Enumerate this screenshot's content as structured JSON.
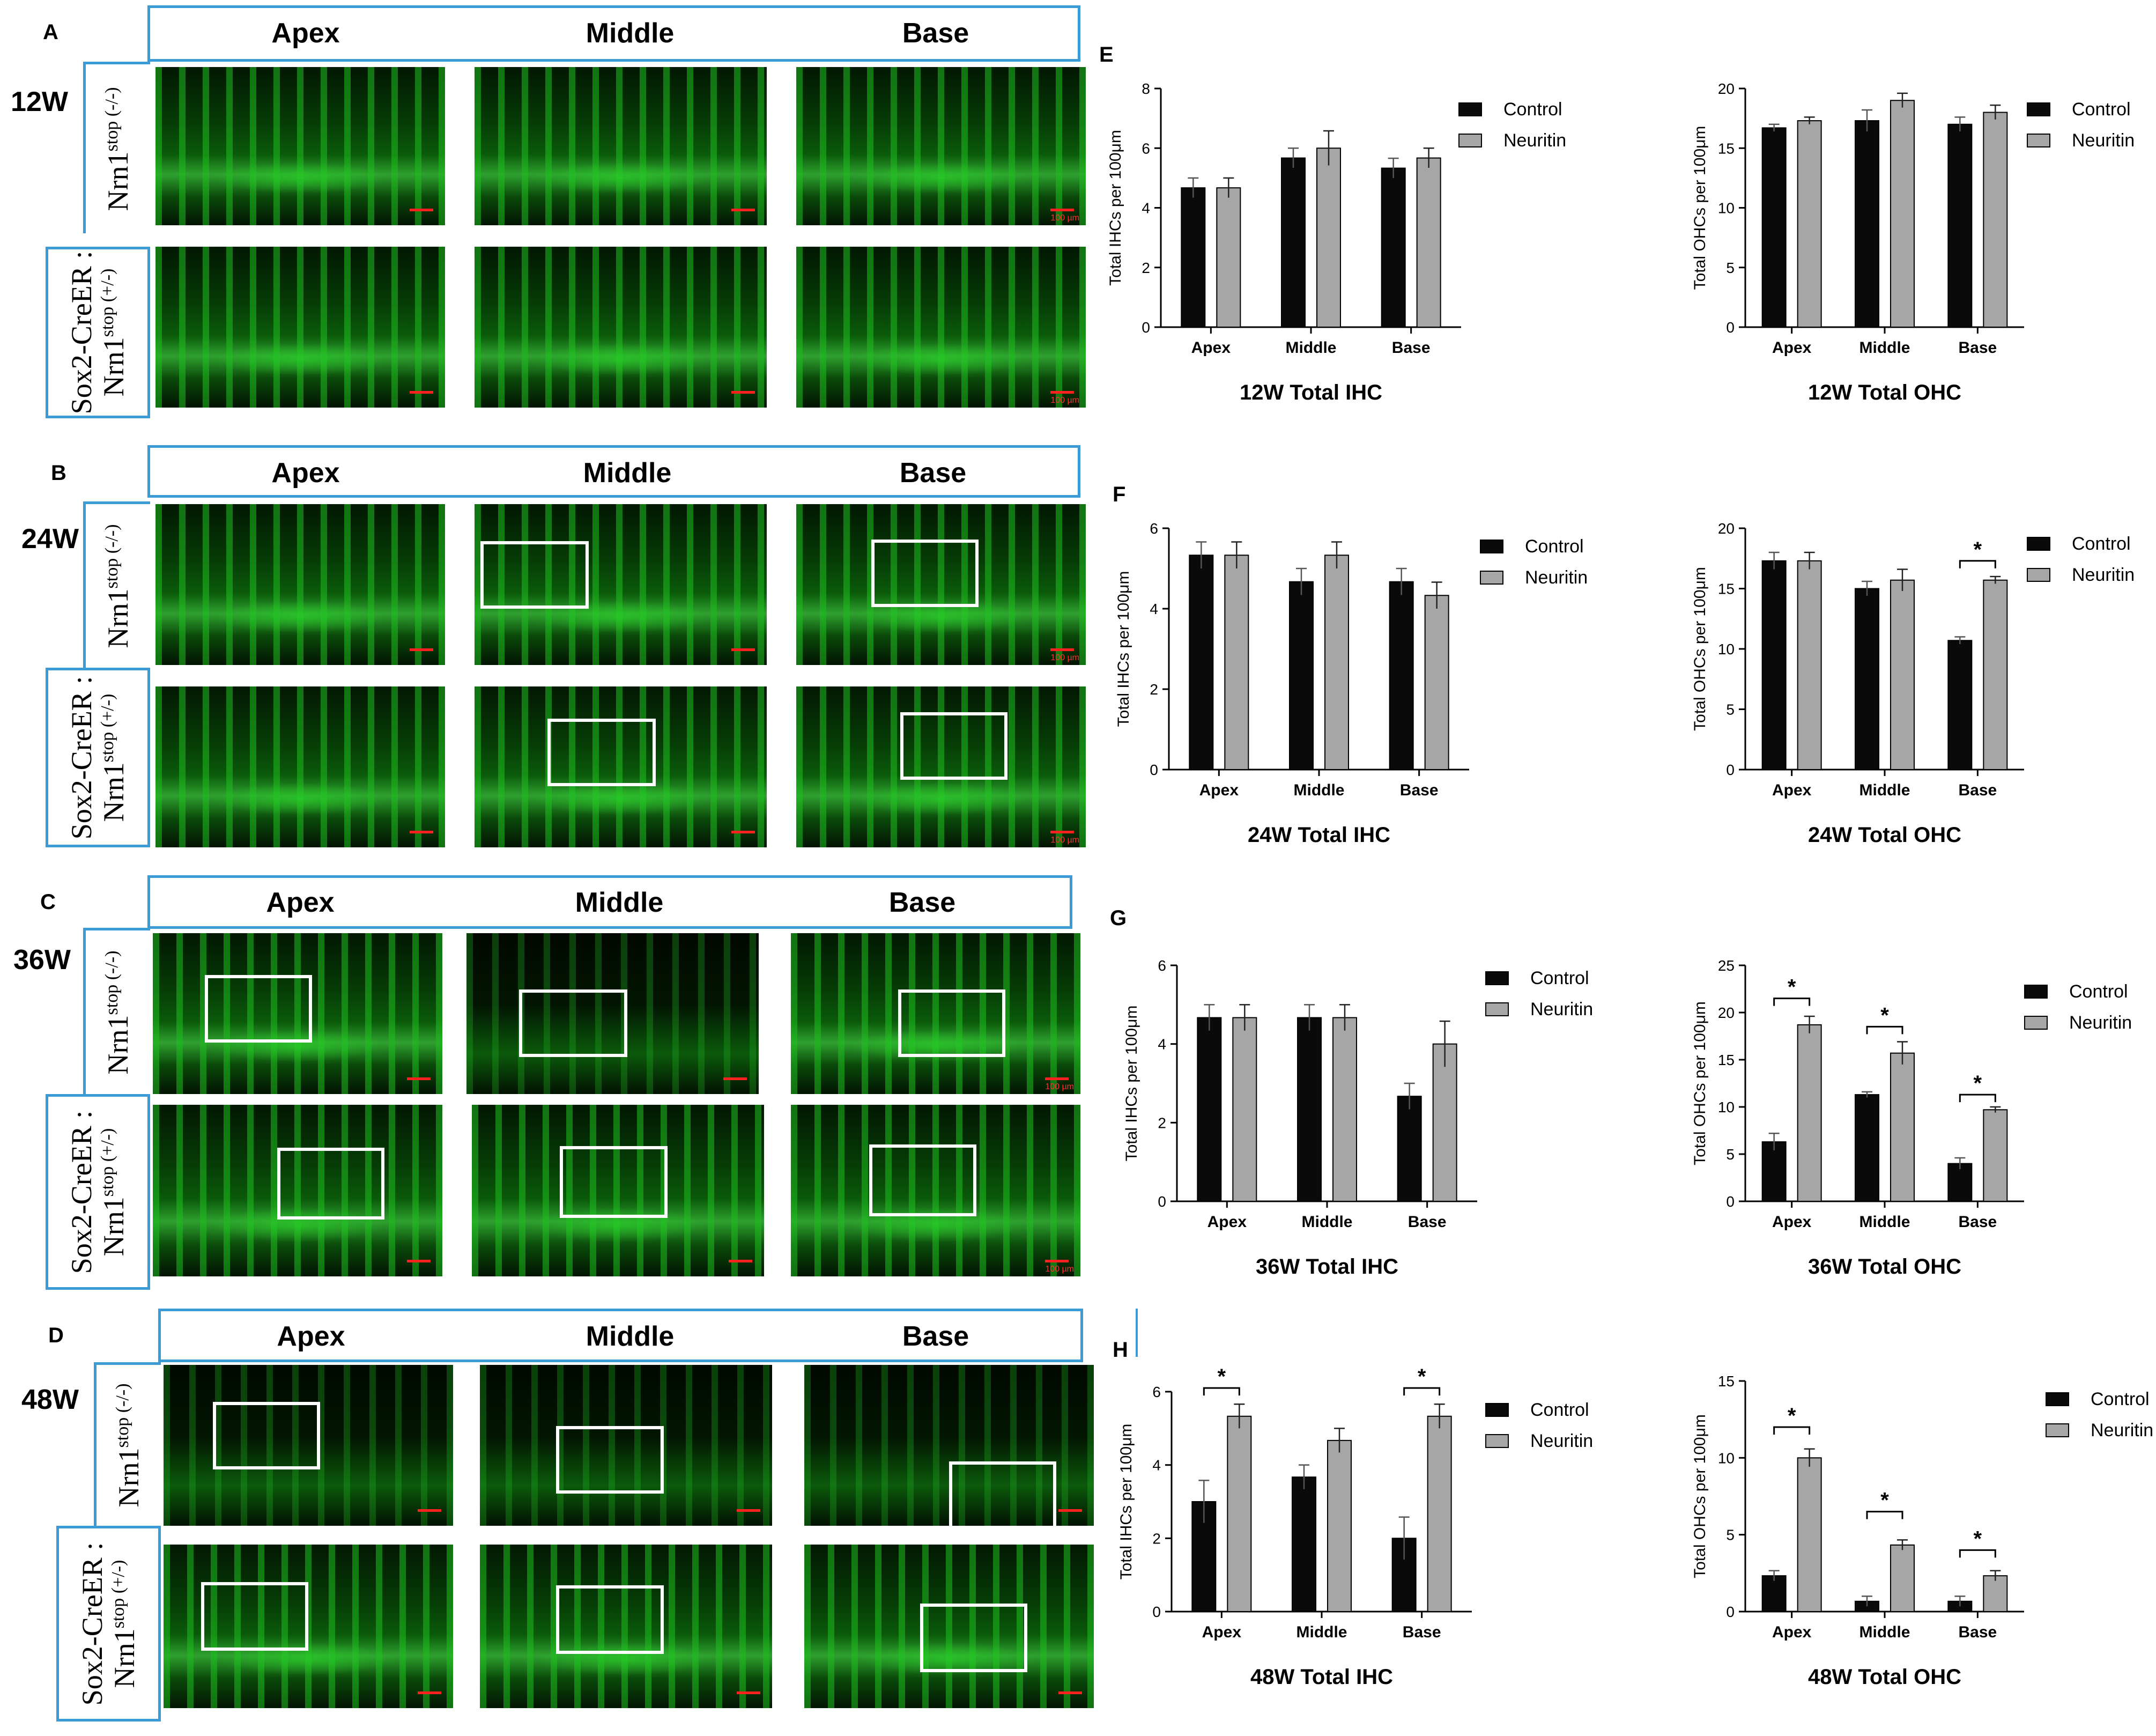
{
  "rows": [
    {
      "panel": "A",
      "week": "12W",
      "regions": [
        "Apex",
        "Middle",
        "Base"
      ],
      "genotype_top": {
        "line1": "Nrn1",
        "sup1": "stop",
        "sup2": "(-/-)"
      },
      "genotype_bottom": {
        "line0": "Sox2-CreER :",
        "line1": "Nrn1",
        "sup1": "stop",
        "sup2": "(+/-)"
      },
      "scale_label": "100 µm",
      "has_roi": false
    },
    {
      "panel": "B",
      "week": "24W",
      "regions": [
        "Apex",
        "Middle",
        "Base"
      ],
      "genotype_top": {
        "line1": "Nrn1",
        "sup1": "stop",
        "sup2": "(-/-)"
      },
      "genotype_bottom": {
        "line0": "Sox2-CreER :",
        "line1": "Nrn1",
        "sup1": "stop",
        "sup2": "(+/-)"
      },
      "scale_label": "100 µm",
      "has_roi": true
    },
    {
      "panel": "C",
      "week": "36W",
      "regions": [
        "Apex",
        "Middle",
        "Base"
      ],
      "genotype_top": {
        "line1": "Nrn1",
        "sup1": "stop",
        "sup2": "(-/-)"
      },
      "genotype_bottom": {
        "line0": "Sox2-CreER :",
        "line1": "Nrn1",
        "sup1": "stop",
        "sup2": "(+/-)"
      },
      "scale_label": "100 µm",
      "has_roi": true
    },
    {
      "panel": "D",
      "week": "48W",
      "regions": [
        "Apex",
        "Middle",
        "Base"
      ],
      "genotype_top": {
        "line1": "Nrn1",
        "sup1": "stop",
        "sup2": "(-/-)"
      },
      "genotype_bottom": {
        "line0": "Sox2-CreER :",
        "line1": "Nrn1",
        "sup1": "stop",
        "sup2": "(+/-)"
      },
      "scale_label": "",
      "has_roi": true
    }
  ],
  "colors": {
    "control": "#0a0a0a",
    "neuritin": "#a6a6a6",
    "frame": "#3b9bd6",
    "fluor": "#2ecc2e"
  },
  "legend": {
    "control": "Control",
    "neuritin": "Neuritin"
  },
  "chart_data": [
    {
      "panel": "E",
      "type": "bar",
      "title": "12W Total IHC",
      "ylabel": "Total IHCs per 100μm",
      "categories": [
        "Apex",
        "Middle",
        "Base"
      ],
      "ylim": [
        0,
        8
      ],
      "yticks": [
        0,
        2,
        4,
        6,
        8
      ],
      "series": [
        {
          "name": "Control",
          "values": [
            4.67,
            5.67,
            5.33
          ],
          "errors": [
            0.33,
            0.33,
            0.33
          ]
        },
        {
          "name": "Neuritin",
          "values": [
            4.67,
            6.0,
            5.67
          ],
          "errors": [
            0.33,
            0.58,
            0.33
          ]
        }
      ],
      "significance": [],
      "legend": "right"
    },
    {
      "panel": "E",
      "type": "bar",
      "title": "12W Total OHC",
      "ylabel": "Total OHCs per 100μm",
      "categories": [
        "Apex",
        "Middle",
        "Base"
      ],
      "ylim": [
        0,
        20
      ],
      "yticks": [
        0,
        5,
        10,
        15,
        20
      ],
      "series": [
        {
          "name": "Control",
          "values": [
            16.7,
            17.3,
            17.0
          ],
          "errors": [
            0.3,
            0.9,
            0.6
          ]
        },
        {
          "name": "Neuritin",
          "values": [
            17.3,
            19.0,
            18.0
          ],
          "errors": [
            0.3,
            0.6,
            0.6
          ]
        }
      ],
      "significance": [],
      "legend": "right"
    },
    {
      "panel": "F",
      "type": "bar",
      "title": "24W Total IHC",
      "ylabel": "Total IHCs per 100μm",
      "categories": [
        "Apex",
        "Middle",
        "Base"
      ],
      "ylim": [
        0,
        6
      ],
      "yticks": [
        0,
        2,
        4,
        6
      ],
      "series": [
        {
          "name": "Control",
          "values": [
            5.33,
            4.67,
            4.67
          ],
          "errors": [
            0.33,
            0.33,
            0.33
          ]
        },
        {
          "name": "Neuritin",
          "values": [
            5.33,
            5.33,
            4.33
          ],
          "errors": [
            0.33,
            0.33,
            0.33
          ]
        }
      ],
      "significance": [],
      "legend": "right"
    },
    {
      "panel": "F",
      "type": "bar",
      "title": "24W Total OHC",
      "ylabel": "Total OHCs per 100μm",
      "categories": [
        "Apex",
        "Middle",
        "Base"
      ],
      "ylim": [
        0,
        20
      ],
      "yticks": [
        0,
        5,
        10,
        15,
        20
      ],
      "series": [
        {
          "name": "Control",
          "values": [
            17.3,
            15.0,
            10.7
          ],
          "errors": [
            0.7,
            0.6,
            0.3
          ]
        },
        {
          "name": "Neuritin",
          "values": [
            17.3,
            15.7,
            15.7
          ],
          "errors": [
            0.7,
            0.9,
            0.3
          ]
        }
      ],
      "significance": [
        {
          "category": 2,
          "label": "*",
          "level": 17.3
        }
      ],
      "legend": "right"
    },
    {
      "panel": "G",
      "type": "bar",
      "title": "36W Total IHC",
      "ylabel": "Total IHCs per 100μm",
      "categories": [
        "Apex",
        "Middle",
        "Base"
      ],
      "ylim": [
        0,
        6
      ],
      "yticks": [
        0,
        2,
        4,
        6
      ],
      "series": [
        {
          "name": "Control",
          "values": [
            4.67,
            4.67,
            2.67
          ],
          "errors": [
            0.33,
            0.33,
            0.33
          ]
        },
        {
          "name": "Neuritin",
          "values": [
            4.67,
            4.67,
            4.0
          ],
          "errors": [
            0.33,
            0.33,
            0.58
          ]
        }
      ],
      "significance": [],
      "legend": "right"
    },
    {
      "panel": "G",
      "type": "bar",
      "title": "36W Total OHC",
      "ylabel": "Total OHCs per 100μm",
      "categories": [
        "Apex",
        "Middle",
        "Base"
      ],
      "ylim": [
        0,
        25
      ],
      "yticks": [
        0,
        5,
        10,
        15,
        20,
        25
      ],
      "series": [
        {
          "name": "Control",
          "values": [
            6.3,
            11.3,
            4.0
          ],
          "errors": [
            0.9,
            0.3,
            0.6
          ]
        },
        {
          "name": "Neuritin",
          "values": [
            18.7,
            15.7,
            9.7
          ],
          "errors": [
            0.9,
            1.2,
            0.3
          ]
        }
      ],
      "significance": [
        {
          "category": 0,
          "label": "*",
          "level": 21.5
        },
        {
          "category": 1,
          "label": "*",
          "level": 18.5
        },
        {
          "category": 2,
          "label": "*",
          "level": 11.3
        }
      ],
      "legend": "right"
    },
    {
      "panel": "H",
      "type": "bar",
      "title": "48W Total IHC",
      "ylabel": "Total IHCs per 100μm",
      "categories": [
        "Apex",
        "Middle",
        "Base"
      ],
      "ylim": [
        0,
        6
      ],
      "yticks": [
        0,
        2,
        4,
        6
      ],
      "series": [
        {
          "name": "Control",
          "values": [
            3.0,
            3.67,
            2.0
          ],
          "errors": [
            0.58,
            0.33,
            0.58
          ]
        },
        {
          "name": "Neuritin",
          "values": [
            5.33,
            4.67,
            5.33
          ],
          "errors": [
            0.33,
            0.33,
            0.33
          ]
        }
      ],
      "significance": [
        {
          "category": 0,
          "label": "*",
          "level": 6.1
        },
        {
          "category": 2,
          "label": "*",
          "level": 6.1
        }
      ],
      "legend": "right"
    },
    {
      "panel": "H",
      "type": "bar",
      "title": "48W Total OHC",
      "ylabel": "Total OHCs per 100μm",
      "categories": [
        "Apex",
        "Middle",
        "Base"
      ],
      "ylim": [
        0,
        15
      ],
      "yticks": [
        0,
        5,
        10,
        15
      ],
      "series": [
        {
          "name": "Control",
          "values": [
            2.33,
            0.67,
            0.67
          ],
          "errors": [
            0.33,
            0.33,
            0.33
          ]
        },
        {
          "name": "Neuritin",
          "values": [
            10.0,
            4.33,
            2.33
          ],
          "errors": [
            0.58,
            0.33,
            0.33
          ]
        }
      ],
      "significance": [
        {
          "category": 0,
          "label": "*",
          "level": 12.0
        },
        {
          "category": 1,
          "label": "*",
          "level": 6.5
        },
        {
          "category": 2,
          "label": "*",
          "level": 4.0
        }
      ],
      "legend": "right"
    }
  ]
}
